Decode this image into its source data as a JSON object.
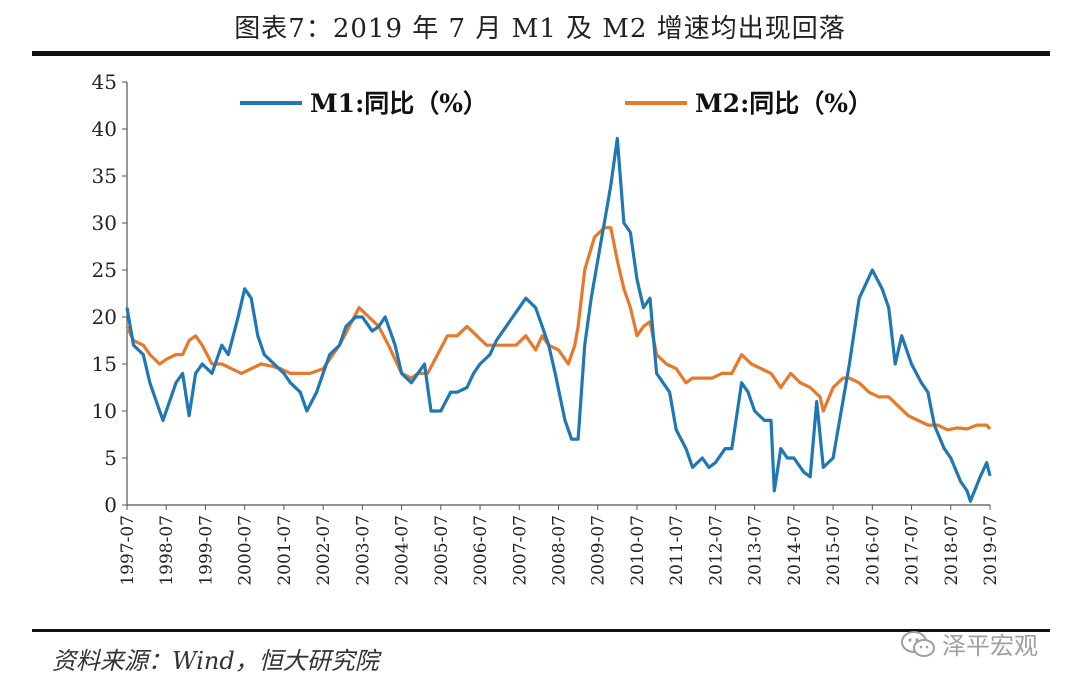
{
  "title": "图表7：2019 年 7 月 M1 及 M2 增速均出现回落",
  "source_note": "资料来源：Wind，恒大研究院",
  "watermark": "泽平宏观",
  "watermark_icon": "wechat-icon",
  "colors": {
    "m1": "#1f77b4",
    "m2": "#e8782a",
    "axis": "#555555",
    "text": "#222222"
  },
  "chart_data": {
    "type": "line",
    "ylim": [
      0,
      45
    ],
    "y_ticks": [
      "0",
      "5",
      "10",
      "15",
      "20",
      "25",
      "30",
      "35",
      "40",
      "45"
    ],
    "x_ticks": [
      "1997-07",
      "1998-07",
      "1999-07",
      "2000-07",
      "2001-07",
      "2002-07",
      "2003-07",
      "2004-07",
      "2005-07",
      "2006-07",
      "2007-07",
      "2008-07",
      "2009-07",
      "2010-07",
      "2011-07",
      "2012-07",
      "2013-07",
      "2014-07",
      "2015-07",
      "2016-07",
      "2017-07",
      "2018-07",
      "2019-07"
    ],
    "grid": false,
    "legend_position": "top",
    "series": [
      {
        "name": "M1:同比（%）",
        "points": [
          [
            "1997-07",
            21
          ],
          [
            "1997-09",
            17
          ],
          [
            "1997-12",
            16
          ],
          [
            "1998-02",
            13
          ],
          [
            "1998-04",
            11
          ],
          [
            "1998-06",
            9
          ],
          [
            "1998-08",
            11
          ],
          [
            "1998-10",
            13
          ],
          [
            "1998-12",
            14
          ],
          [
            "1999-02",
            9.5
          ],
          [
            "1999-04",
            14
          ],
          [
            "1999-06",
            15
          ],
          [
            "1999-09",
            14
          ],
          [
            "1999-12",
            17
          ],
          [
            "2000-02",
            16
          ],
          [
            "2000-05",
            20
          ],
          [
            "2000-07",
            23
          ],
          [
            "2000-09",
            22
          ],
          [
            "2000-11",
            18
          ],
          [
            "2001-01",
            16
          ],
          [
            "2001-04",
            15
          ],
          [
            "2001-07",
            14
          ],
          [
            "2001-09",
            13
          ],
          [
            "2001-12",
            12
          ],
          [
            "2002-02",
            10
          ],
          [
            "2002-05",
            12
          ],
          [
            "2002-07",
            14
          ],
          [
            "2002-09",
            16
          ],
          [
            "2002-12",
            17
          ],
          [
            "2003-02",
            19
          ],
          [
            "2003-05",
            20
          ],
          [
            "2003-07",
            20
          ],
          [
            "2003-10",
            18.5
          ],
          [
            "2003-12",
            19
          ],
          [
            "2004-02",
            20
          ],
          [
            "2004-05",
            17
          ],
          [
            "2004-07",
            14
          ],
          [
            "2004-10",
            13
          ],
          [
            "2004-12",
            14
          ],
          [
            "2005-02",
            15
          ],
          [
            "2005-04",
            10
          ],
          [
            "2005-07",
            10
          ],
          [
            "2005-10",
            12
          ],
          [
            "2005-12",
            12
          ],
          [
            "2006-03",
            12.5
          ],
          [
            "2006-05",
            14
          ],
          [
            "2006-07",
            15
          ],
          [
            "2006-10",
            16
          ],
          [
            "2006-12",
            17.5
          ],
          [
            "2007-03",
            19
          ],
          [
            "2007-05",
            20
          ],
          [
            "2007-07",
            21
          ],
          [
            "2007-09",
            22
          ],
          [
            "2007-12",
            21
          ],
          [
            "2008-02",
            19
          ],
          [
            "2008-04",
            17
          ],
          [
            "2008-06",
            14
          ],
          [
            "2008-09",
            9
          ],
          [
            "2008-11",
            7
          ],
          [
            "2009-01",
            7
          ],
          [
            "2009-03",
            17
          ],
          [
            "2009-05",
            22
          ],
          [
            "2009-07",
            26
          ],
          [
            "2009-09",
            30
          ],
          [
            "2009-11",
            34
          ],
          [
            "2010-01",
            39
          ],
          [
            "2010-03",
            30
          ],
          [
            "2010-05",
            29
          ],
          [
            "2010-07",
            24
          ],
          [
            "2010-09",
            21
          ],
          [
            "2010-11",
            22
          ],
          [
            "2011-01",
            14
          ],
          [
            "2011-03",
            13
          ],
          [
            "2011-05",
            12
          ],
          [
            "2011-07",
            8
          ],
          [
            "2011-10",
            6
          ],
          [
            "2011-12",
            4
          ],
          [
            "2012-03",
            5
          ],
          [
            "2012-05",
            4
          ],
          [
            "2012-07",
            4.5
          ],
          [
            "2012-10",
            6
          ],
          [
            "2012-12",
            6
          ],
          [
            "2013-03",
            13
          ],
          [
            "2013-05",
            12
          ],
          [
            "2013-07",
            10
          ],
          [
            "2013-10",
            9
          ],
          [
            "2013-12",
            9
          ],
          [
            "2014-01",
            1.5
          ],
          [
            "2014-03",
            6
          ],
          [
            "2014-05",
            5
          ],
          [
            "2014-07",
            5
          ],
          [
            "2014-10",
            3.5
          ],
          [
            "2014-12",
            3
          ],
          [
            "2015-02",
            11
          ],
          [
            "2015-04",
            4
          ],
          [
            "2015-07",
            5
          ],
          [
            "2015-09",
            9
          ],
          [
            "2015-12",
            15
          ],
          [
            "2016-03",
            22
          ],
          [
            "2016-05",
            23.5
          ],
          [
            "2016-07",
            25
          ],
          [
            "2016-10",
            23
          ],
          [
            "2016-12",
            21
          ],
          [
            "2017-02",
            15
          ],
          [
            "2017-04",
            18
          ],
          [
            "2017-07",
            15
          ],
          [
            "2017-10",
            13
          ],
          [
            "2017-12",
            12
          ],
          [
            "2018-02",
            8.5
          ],
          [
            "2018-05",
            6
          ],
          [
            "2018-07",
            5
          ],
          [
            "2018-10",
            2.5
          ],
          [
            "2018-12",
            1.5
          ],
          [
            "2019-01",
            0.4
          ],
          [
            "2019-04",
            3
          ],
          [
            "2019-06",
            4.5
          ],
          [
            "2019-07",
            3.1
          ]
        ]
      },
      {
        "name": "M2:同比（%）",
        "points": [
          [
            "1997-07",
            19
          ],
          [
            "1997-09",
            17.5
          ],
          [
            "1997-12",
            17
          ],
          [
            "1998-02",
            16
          ],
          [
            "1998-05",
            15
          ],
          [
            "1998-07",
            15.5
          ],
          [
            "1998-10",
            16
          ],
          [
            "1998-12",
            16
          ],
          [
            "1999-02",
            17.5
          ],
          [
            "1999-04",
            18
          ],
          [
            "1999-06",
            17
          ],
          [
            "1999-09",
            15
          ],
          [
            "1999-12",
            15
          ],
          [
            "2000-03",
            14.5
          ],
          [
            "2000-06",
            14
          ],
          [
            "2000-09",
            14.5
          ],
          [
            "2000-12",
            15
          ],
          [
            "2001-03",
            14.8
          ],
          [
            "2001-06",
            14.5
          ],
          [
            "2001-09",
            14
          ],
          [
            "2001-12",
            14
          ],
          [
            "2002-03",
            14
          ],
          [
            "2002-07",
            14.5
          ],
          [
            "2002-10",
            16
          ],
          [
            "2002-12",
            17
          ],
          [
            "2003-03",
            19
          ],
          [
            "2003-06",
            21
          ],
          [
            "2003-09",
            20
          ],
          [
            "2003-12",
            19
          ],
          [
            "2004-03",
            17
          ],
          [
            "2004-07",
            14
          ],
          [
            "2004-10",
            13.5
          ],
          [
            "2004-12",
            14
          ],
          [
            "2005-03",
            14
          ],
          [
            "2005-06",
            16
          ],
          [
            "2005-09",
            18
          ],
          [
            "2005-12",
            18
          ],
          [
            "2006-03",
            19
          ],
          [
            "2006-06",
            18
          ],
          [
            "2006-09",
            17
          ],
          [
            "2006-12",
            17
          ],
          [
            "2007-03",
            17
          ],
          [
            "2007-06",
            17
          ],
          [
            "2007-09",
            18
          ],
          [
            "2007-12",
            16.5
          ],
          [
            "2008-02",
            18
          ],
          [
            "2008-04",
            17
          ],
          [
            "2008-07",
            16.5
          ],
          [
            "2008-10",
            15
          ],
          [
            "2008-12",
            17
          ],
          [
            "2009-01",
            19
          ],
          [
            "2009-03",
            25
          ],
          [
            "2009-06",
            28.5
          ],
          [
            "2009-09",
            29.5
          ],
          [
            "2009-11",
            29.5
          ],
          [
            "2010-01",
            26
          ],
          [
            "2010-03",
            23
          ],
          [
            "2010-05",
            21
          ],
          [
            "2010-07",
            18
          ],
          [
            "2010-09",
            19
          ],
          [
            "2010-11",
            19.5
          ],
          [
            "2011-01",
            16
          ],
          [
            "2011-04",
            15
          ],
          [
            "2011-07",
            14.5
          ],
          [
            "2011-10",
            13
          ],
          [
            "2011-12",
            13.5
          ],
          [
            "2012-03",
            13.5
          ],
          [
            "2012-06",
            13.5
          ],
          [
            "2012-09",
            14
          ],
          [
            "2012-12",
            14
          ],
          [
            "2013-03",
            16
          ],
          [
            "2013-06",
            15
          ],
          [
            "2013-09",
            14.5
          ],
          [
            "2013-12",
            14
          ],
          [
            "2014-03",
            12.5
          ],
          [
            "2014-06",
            14
          ],
          [
            "2014-09",
            13
          ],
          [
            "2014-12",
            12.5
          ],
          [
            "2015-03",
            11.5
          ],
          [
            "2015-04",
            10
          ],
          [
            "2015-07",
            12.5
          ],
          [
            "2015-10",
            13.5
          ],
          [
            "2015-12",
            13.5
          ],
          [
            "2016-03",
            13
          ],
          [
            "2016-06",
            12
          ],
          [
            "2016-09",
            11.5
          ],
          [
            "2016-12",
            11.5
          ],
          [
            "2017-03",
            10.5
          ],
          [
            "2017-06",
            9.5
          ],
          [
            "2017-09",
            9
          ],
          [
            "2017-12",
            8.5
          ],
          [
            "2018-03",
            8.5
          ],
          [
            "2018-06",
            8
          ],
          [
            "2018-09",
            8.2
          ],
          [
            "2018-12",
            8.1
          ],
          [
            "2019-03",
            8.5
          ],
          [
            "2019-06",
            8.5
          ],
          [
            "2019-07",
            8.1
          ]
        ]
      }
    ]
  }
}
